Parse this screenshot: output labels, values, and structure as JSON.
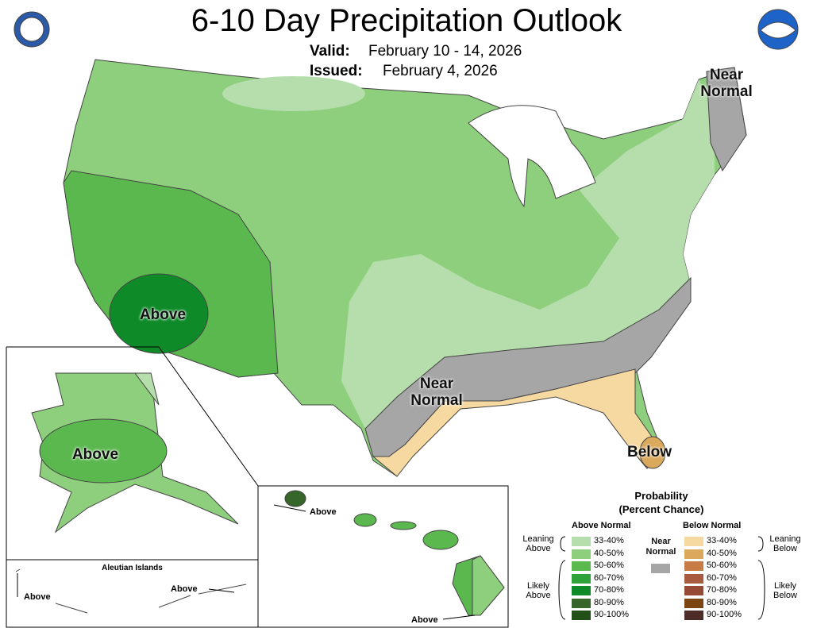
{
  "header": {
    "title": "6-10 Day Precipitation Outlook",
    "valid_label": "Valid:",
    "valid": "February 10 - 14, 2026",
    "issued_label": "Issued:",
    "issued": "February 4, 2026"
  },
  "map_labels": {
    "northeast": "Near Normal",
    "west": "Above",
    "south": "Near Normal",
    "florida": "Below",
    "alaska": "Above",
    "hawaii_kauai": "Above",
    "hawaii_big_island": "Above",
    "aleutian_west": "Above",
    "aleutian_east": "Above"
  },
  "insets": {
    "aleutian_title": "Aleutian Islands"
  },
  "legend": {
    "title": "Probability",
    "subtitle": "(Percent Chance)",
    "above_header": "Above Normal",
    "below_header": "Below Normal",
    "near_label": "Near Normal",
    "near_color": "#a6a6a6",
    "leaning_above": "Leaning Above",
    "likely_above": "Likely Above",
    "leaning_below": "Leaning Below",
    "likely_below": "Likely Below",
    "above_items": [
      {
        "label": "33-40%",
        "color": "#b5deac"
      },
      {
        "label": "40-50%",
        "color": "#8ecf7d"
      },
      {
        "label": "50-60%",
        "color": "#5bb84f"
      },
      {
        "label": "60-70%",
        "color": "#2fa23a"
      },
      {
        "label": "70-80%",
        "color": "#0e8a29"
      },
      {
        "label": "80-90%",
        "color": "#36662a"
      },
      {
        "label": "90-100%",
        "color": "#224e17"
      }
    ],
    "below_items": [
      {
        "label": "33-40%",
        "color": "#f6d9a0"
      },
      {
        "label": "40-50%",
        "color": "#dba95c"
      },
      {
        "label": "50-60%",
        "color": "#c77b45"
      },
      {
        "label": "60-70%",
        "color": "#a85a3e"
      },
      {
        "label": "70-80%",
        "color": "#964a36"
      },
      {
        "label": "80-90%",
        "color": "#7d4413"
      },
      {
        "label": "90-100%",
        "color": "#4d2c27"
      }
    ]
  }
}
